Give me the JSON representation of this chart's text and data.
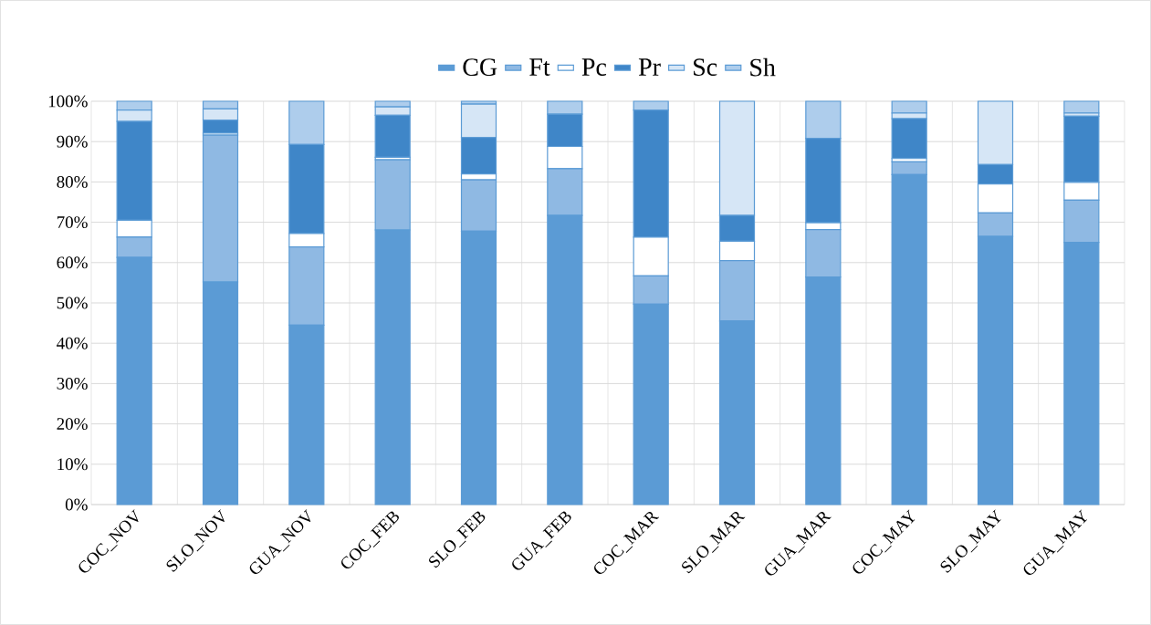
{
  "chart_data": {
    "type": "bar",
    "stacked": true,
    "legend": "top",
    "grid": true,
    "categories": [
      "COC_NOV",
      "SLO_NOV",
      "GUA_NOV",
      "COC_FEB",
      "SLO_FEB",
      "GUA_FEB",
      "COC_MAR",
      "SLO_MAR",
      "GUA_MAR",
      "COC_MAY",
      "SLO_MAY",
      "GUA_MAY"
    ],
    "series": [
      {
        "name": "CG",
        "color": "#5b9bd5",
        "values": [
          61.3,
          55.2,
          44.5,
          68.1,
          67.8,
          71.7,
          49.7,
          45.5,
          56.4,
          81.8,
          66.5,
          65.0
        ]
      },
      {
        "name": "Ft",
        "color": "#8fb9e3",
        "values": [
          5.0,
          36.4,
          19.4,
          17.4,
          12.7,
          11.6,
          7.0,
          15.0,
          11.8,
          3.2,
          5.8,
          10.5
        ]
      },
      {
        "name": "Pc",
        "color": "#ffffff",
        "values": [
          4.2,
          0.5,
          3.3,
          0.6,
          1.5,
          5.5,
          9.6,
          4.8,
          1.7,
          0.8,
          7.2,
          4.4
        ]
      },
      {
        "name": "Pr",
        "color": "#3f86c8",
        "values": [
          24.5,
          3.2,
          22.1,
          10.4,
          9.0,
          8.0,
          31.5,
          6.4,
          20.9,
          9.9,
          4.8,
          16.4
        ]
      },
      {
        "name": "Sc",
        "color": "#d6e6f6",
        "values": [
          2.8,
          2.8,
          0,
          2.1,
          8.3,
          0,
          0,
          28.3,
          0,
          1.4,
          15.7,
          0.8
        ]
      },
      {
        "name": "Sh",
        "color": "#aecdec",
        "values": [
          2.2,
          1.9,
          10.7,
          1.4,
          0.7,
          3.2,
          2.2,
          0,
          9.2,
          2.9,
          0,
          2.9
        ]
      }
    ],
    "ylim": [
      0,
      100
    ],
    "yticks": [
      {
        "value": 0,
        "label": "0%"
      },
      {
        "value": 10,
        "label": "10%"
      },
      {
        "value": 20,
        "label": "20%"
      },
      {
        "value": 30,
        "label": "30%"
      },
      {
        "value": 40,
        "label": "40%"
      },
      {
        "value": 50,
        "label": "50%"
      },
      {
        "value": 60,
        "label": "60%"
      },
      {
        "value": 70,
        "label": "70%"
      },
      {
        "value": 80,
        "label": "80%"
      },
      {
        "value": 90,
        "label": "90%"
      },
      {
        "value": 100,
        "label": "100%"
      }
    ]
  }
}
